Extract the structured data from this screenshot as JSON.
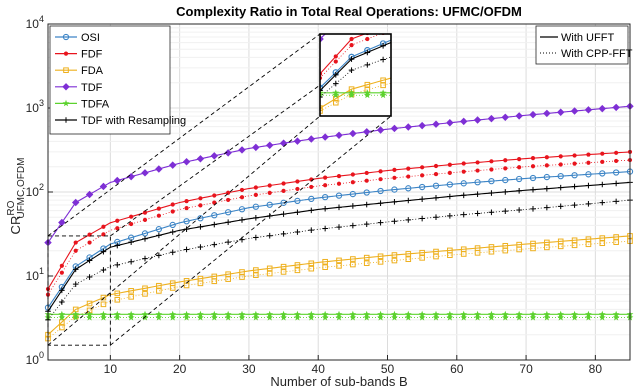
{
  "chart_data": {
    "type": "line",
    "title": "Complexity Ratio in Total Real Operations: UFMC/OFDM",
    "xlabel": "Number of sub-bands B",
    "ylabel_main": "CR",
    "ylabel_sup": "RO",
    "ylabel_sub": "UFMC,OFDM",
    "y_scale": "log",
    "xlim": [
      1,
      85
    ],
    "ylim": [
      1,
      10000
    ],
    "x_ticks": [
      "10",
      "20",
      "30",
      "40",
      "50",
      "60",
      "70",
      "80"
    ],
    "y_ticks": [
      {
        "base": "10",
        "exp": "0"
      },
      {
        "base": "10",
        "exp": "1"
      },
      {
        "base": "10",
        "exp": "2"
      },
      {
        "base": "10",
        "exp": "3"
      },
      {
        "base": "10",
        "exp": "4"
      }
    ],
    "grid": true,
    "legend_position": "top-left",
    "series": [
      {
        "name": "OSI",
        "color": "#3d85c6",
        "marker": "circle",
        "ufft": [
          [
            1,
            4.2
          ],
          [
            5,
            13
          ],
          [
            10,
            24
          ],
          [
            20,
            43
          ],
          [
            30,
            65
          ],
          [
            40,
            85
          ],
          [
            50,
            105
          ],
          [
            60,
            125
          ],
          [
            70,
            145
          ],
          [
            85,
            175
          ]
        ],
        "cpp": [
          [
            1,
            4.2
          ],
          [
            5,
            13
          ],
          [
            10,
            24
          ],
          [
            20,
            43
          ],
          [
            30,
            65
          ],
          [
            40,
            85
          ],
          [
            50,
            105
          ],
          [
            60,
            125
          ],
          [
            70,
            145
          ],
          [
            85,
            175
          ]
        ]
      },
      {
        "name": "FDF",
        "color": "#e8141d",
        "marker": "dot",
        "ufft": [
          [
            1,
            7
          ],
          [
            5,
            25
          ],
          [
            10,
            43
          ],
          [
            20,
            75
          ],
          [
            30,
            110
          ],
          [
            40,
            145
          ],
          [
            50,
            180
          ],
          [
            60,
            215
          ],
          [
            70,
            250
          ],
          [
            85,
            300
          ]
        ],
        "cpp": [
          [
            1,
            6
          ],
          [
            5,
            20
          ],
          [
            10,
            35
          ],
          [
            20,
            62
          ],
          [
            30,
            90
          ],
          [
            40,
            118
          ],
          [
            50,
            145
          ],
          [
            60,
            172
          ],
          [
            70,
            200
          ],
          [
            85,
            240
          ]
        ]
      },
      {
        "name": "FDA",
        "color": "#eeb01e",
        "marker": "square",
        "ufft": [
          [
            1,
            2
          ],
          [
            5,
            4
          ],
          [
            10,
            6
          ],
          [
            20,
            8.5
          ],
          [
            30,
            11.5
          ],
          [
            40,
            14.5
          ],
          [
            50,
            17.5
          ],
          [
            60,
            20.5
          ],
          [
            70,
            24
          ],
          [
            85,
            30
          ]
        ],
        "cpp": [
          [
            1,
            1.8
          ],
          [
            5,
            3.3
          ],
          [
            10,
            5
          ],
          [
            20,
            7.5
          ],
          [
            30,
            10
          ],
          [
            40,
            12.5
          ],
          [
            50,
            15
          ],
          [
            60,
            18
          ],
          [
            70,
            21
          ],
          [
            85,
            26
          ]
        ]
      },
      {
        "name": "TDF",
        "color": "#7e2fd5",
        "marker": "diamond",
        "ufft": [
          [
            1,
            25
          ],
          [
            5,
            75
          ],
          [
            10,
            130
          ],
          [
            20,
            220
          ],
          [
            30,
            330
          ],
          [
            40,
            440
          ],
          [
            50,
            560
          ],
          [
            60,
            680
          ],
          [
            70,
            820
          ],
          [
            85,
            1050
          ]
        ],
        "cpp": [
          [
            1,
            25
          ],
          [
            5,
            75
          ],
          [
            10,
            130
          ],
          [
            20,
            220
          ],
          [
            30,
            330
          ],
          [
            40,
            440
          ],
          [
            50,
            560
          ],
          [
            60,
            680
          ],
          [
            70,
            820
          ],
          [
            85,
            1050
          ]
        ]
      },
      {
        "name": "TDFA",
        "color": "#5cd22e",
        "marker": "star",
        "ufft": [
          [
            1,
            3.5
          ],
          [
            85,
            3.5
          ]
        ],
        "cpp": [
          [
            1,
            3.2
          ],
          [
            85,
            3.2
          ]
        ]
      },
      {
        "name": "TDF with Resampling",
        "color": "#000000",
        "marker": "plus",
        "ufft": [
          [
            1,
            3.8
          ],
          [
            5,
            12
          ],
          [
            10,
            22
          ],
          [
            20,
            35
          ],
          [
            30,
            48
          ],
          [
            40,
            62
          ],
          [
            50,
            75
          ],
          [
            60,
            90
          ],
          [
            70,
            105
          ],
          [
            85,
            130
          ]
        ],
        "cpp": [
          [
            1,
            3
          ],
          [
            5,
            8
          ],
          [
            10,
            13
          ],
          [
            20,
            20
          ],
          [
            30,
            28
          ],
          [
            40,
            36
          ],
          [
            50,
            44
          ],
          [
            60,
            53
          ],
          [
            70,
            62
          ],
          [
            85,
            80
          ]
        ]
      }
    ],
    "line_styles": [
      {
        "name": "With UFFT",
        "style": "solid"
      },
      {
        "name": "With CPP-FFT",
        "style": "dotted"
      }
    ]
  }
}
